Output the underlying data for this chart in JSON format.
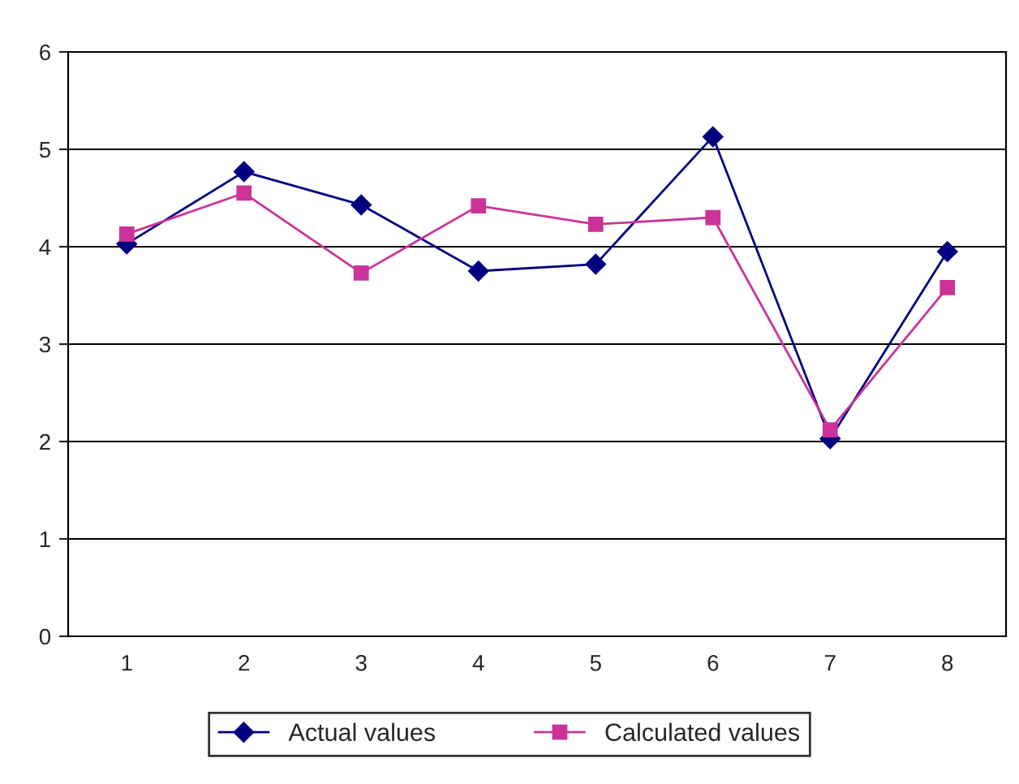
{
  "chart_data": {
    "type": "line",
    "categories": [
      "1",
      "2",
      "3",
      "4",
      "5",
      "6",
      "7",
      "8"
    ],
    "series": [
      {
        "name": "Actual values",
        "color": "#000080",
        "marker": "diamond",
        "values": [
          4.03,
          4.77,
          4.43,
          3.75,
          3.82,
          5.13,
          2.03,
          3.95
        ]
      },
      {
        "name": "Calculated values",
        "color": "#cc3399",
        "marker": "square",
        "values": [
          4.13,
          4.55,
          3.73,
          4.42,
          4.23,
          4.3,
          2.12,
          3.58
        ]
      }
    ],
    "ylim": [
      0,
      6
    ],
    "yticks": [
      0,
      1,
      2,
      3,
      4,
      5,
      6
    ],
    "grid": "y",
    "legend": "bottom"
  }
}
